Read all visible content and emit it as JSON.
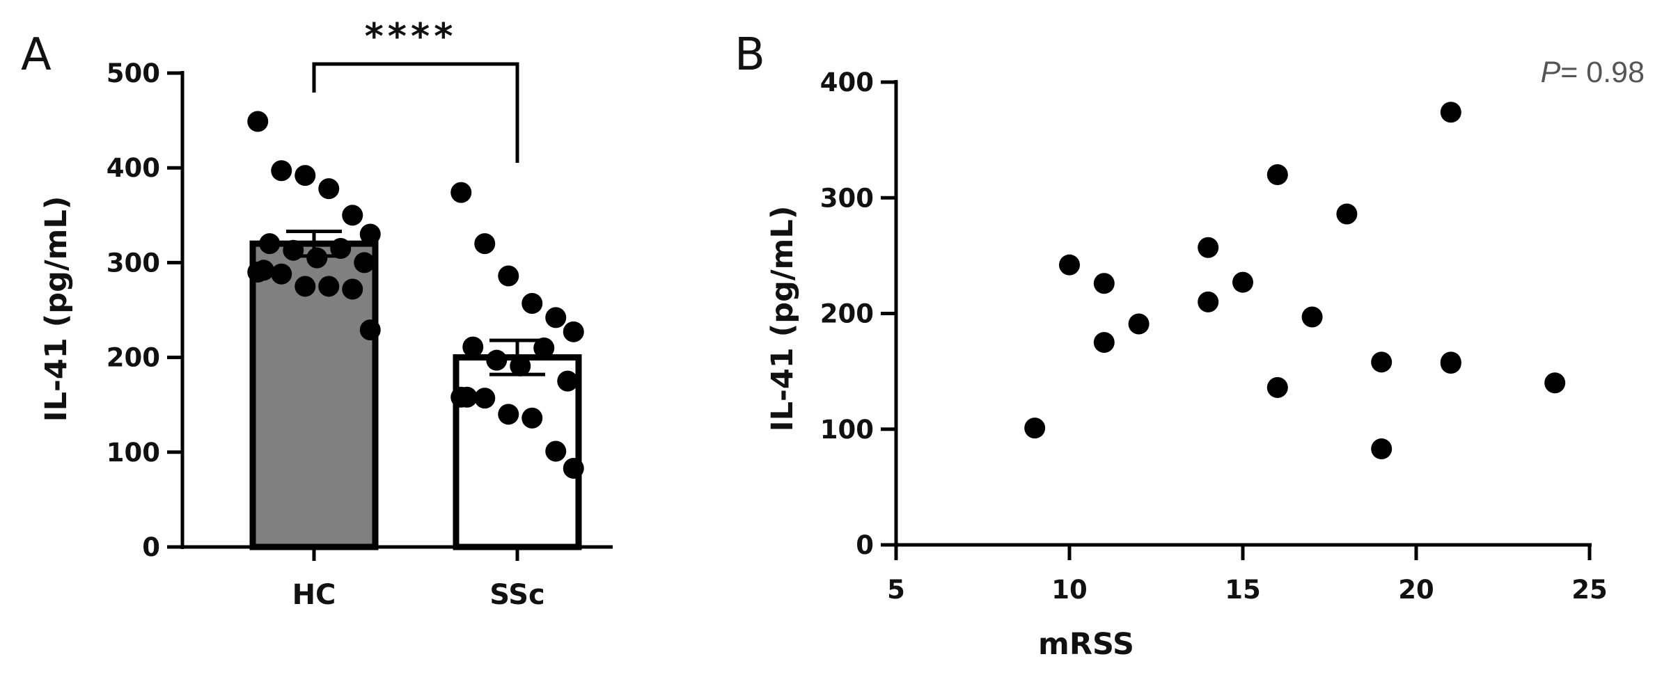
{
  "colors": {
    "hc_bar": "#808080",
    "ssc_bar": "#ffffff",
    "ink": "#000000",
    "p_text": "#555555"
  },
  "chart_data": [
    {
      "panel": "A",
      "type": "bar",
      "categories": [
        "HC",
        "SSc"
      ],
      "values": [
        320,
        200
      ],
      "errors": [
        13,
        18
      ],
      "ylabel": "IL-41 (pg/mL)",
      "ylim": [
        0,
        500
      ],
      "yticks": [
        "0",
        "100",
        "200",
        "300",
        "400",
        "500"
      ],
      "grid": false,
      "significance": "****",
      "points": [
        {
          "category": "HC",
          "values": [
            449,
            397,
            392,
            378,
            350,
            330,
            320,
            315,
            313,
            305,
            300,
            292,
            290,
            288,
            275,
            275,
            272,
            229
          ]
        },
        {
          "category": "SSc",
          "values": [
            374,
            320,
            286,
            257,
            242,
            227,
            211,
            210,
            197,
            191,
            175,
            158,
            158,
            157,
            140,
            136,
            101,
            83
          ]
        }
      ]
    },
    {
      "panel": "B",
      "type": "scatter",
      "xlabel": "mRSS",
      "ylabel": "IL-41 (pg/mL)",
      "xlim": [
        5,
        25
      ],
      "ylim": [
        0,
        400
      ],
      "xticks": [
        "5",
        "10",
        "15",
        "20",
        "25"
      ],
      "yticks": [
        "0",
        "100",
        "200",
        "300",
        "400"
      ],
      "grid": false,
      "annotation": {
        "p_symbol": "P",
        "p_value": "= 0.98"
      },
      "points": [
        {
          "x": 9,
          "y": 101
        },
        {
          "x": 10,
          "y": 242
        },
        {
          "x": 11,
          "y": 226
        },
        {
          "x": 11,
          "y": 175
        },
        {
          "x": 12,
          "y": 191
        },
        {
          "x": 14,
          "y": 257
        },
        {
          "x": 14,
          "y": 210
        },
        {
          "x": 15,
          "y": 227
        },
        {
          "x": 16,
          "y": 320
        },
        {
          "x": 16,
          "y": 136
        },
        {
          "x": 17,
          "y": 197
        },
        {
          "x": 18,
          "y": 286
        },
        {
          "x": 19,
          "y": 158
        },
        {
          "x": 19,
          "y": 83
        },
        {
          "x": 21,
          "y": 374
        },
        {
          "x": 21,
          "y": 158
        },
        {
          "x": 21,
          "y": 157
        },
        {
          "x": 24,
          "y": 140
        }
      ]
    }
  ]
}
